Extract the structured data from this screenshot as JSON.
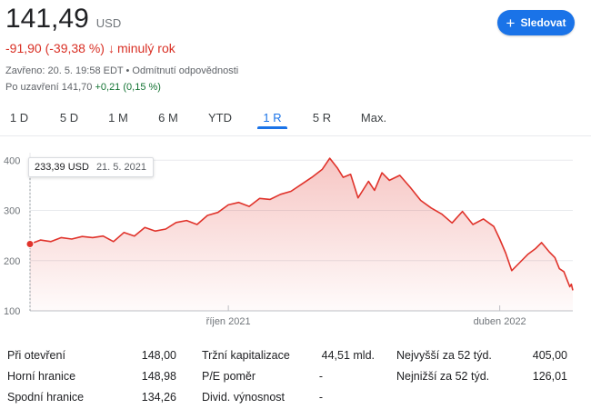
{
  "quote": {
    "price": "141,49",
    "currency": "USD",
    "change": "-91,90 (-39,38 %)",
    "change_arrow": "↓",
    "period": "minulý rok",
    "closed_info": "Zavřeno: 20. 5. 19:58 EDT",
    "disclaimer": "Odmítnutí odpovědnosti",
    "after_label": "Po uzavření 141,70",
    "after_change": "+0,21 (0,15 %)"
  },
  "follow_button": {
    "label": "Sledovat",
    "icon": "plus-icon"
  },
  "tabs": [
    {
      "label": "1 D",
      "active": false
    },
    {
      "label": "5 D",
      "active": false
    },
    {
      "label": "1 M",
      "active": false
    },
    {
      "label": "6 M",
      "active": false
    },
    {
      "label": "YTD",
      "active": false
    },
    {
      "label": "1 R",
      "active": true
    },
    {
      "label": "5 R",
      "active": false
    },
    {
      "label": "Max.",
      "active": false
    }
  ],
  "tooltip": {
    "value": "233,39 USD",
    "date": "21. 5. 2021"
  },
  "colors": {
    "line": "#e0332b",
    "accent": "#1a73e8",
    "negative": "#d93025",
    "positive": "#137333"
  },
  "chart_data": {
    "type": "area",
    "y_ticks": [
      "400",
      "300",
      "200",
      "100"
    ],
    "y_tick_values": [
      400,
      300,
      200,
      100
    ],
    "ylim": [
      100,
      415
    ],
    "x_tick_labels": [
      "říjen 2021",
      "duben 2022"
    ],
    "x_tick_dates": [
      "2021-10-01",
      "2022-04-01"
    ],
    "xlim": [
      "2021-05-21",
      "2022-05-20"
    ],
    "grid": true,
    "series": [
      {
        "points": [
          [
            "2021-05-21",
            233
          ],
          [
            "2021-05-28",
            241
          ],
          [
            "2021-06-04",
            238
          ],
          [
            "2021-06-11",
            246
          ],
          [
            "2021-06-18",
            243
          ],
          [
            "2021-06-25",
            248
          ],
          [
            "2021-07-02",
            246
          ],
          [
            "2021-07-09",
            249
          ],
          [
            "2021-07-16",
            238
          ],
          [
            "2021-07-23",
            256
          ],
          [
            "2021-07-30",
            249
          ],
          [
            "2021-08-06",
            266
          ],
          [
            "2021-08-13",
            259
          ],
          [
            "2021-08-20",
            263
          ],
          [
            "2021-08-27",
            276
          ],
          [
            "2021-09-03",
            280
          ],
          [
            "2021-09-10",
            272
          ],
          [
            "2021-09-17",
            290
          ],
          [
            "2021-09-24",
            296
          ],
          [
            "2021-10-01",
            311
          ],
          [
            "2021-10-08",
            316
          ],
          [
            "2021-10-15",
            308
          ],
          [
            "2021-10-22",
            324
          ],
          [
            "2021-10-29",
            322
          ],
          [
            "2021-11-05",
            332
          ],
          [
            "2021-11-12",
            338
          ],
          [
            "2021-11-19",
            352
          ],
          [
            "2021-11-26",
            366
          ],
          [
            "2021-12-03",
            382
          ],
          [
            "2021-12-08",
            404
          ],
          [
            "2021-12-13",
            385
          ],
          [
            "2021-12-17",
            366
          ],
          [
            "2021-12-22",
            372
          ],
          [
            "2021-12-27",
            325
          ],
          [
            "2022-01-03",
            358
          ],
          [
            "2022-01-07",
            340
          ],
          [
            "2022-01-12",
            375
          ],
          [
            "2022-01-17",
            360
          ],
          [
            "2022-01-24",
            370
          ],
          [
            "2022-01-31",
            346
          ],
          [
            "2022-02-07",
            320
          ],
          [
            "2022-02-14",
            305
          ],
          [
            "2022-02-21",
            293
          ],
          [
            "2022-02-28",
            275
          ],
          [
            "2022-03-07",
            298
          ],
          [
            "2022-03-14",
            272
          ],
          [
            "2022-03-21",
            283
          ],
          [
            "2022-03-28",
            268
          ],
          [
            "2022-04-01",
            243
          ],
          [
            "2022-04-05",
            215
          ],
          [
            "2022-04-09",
            180
          ],
          [
            "2022-04-14",
            195
          ],
          [
            "2022-04-20",
            213
          ],
          [
            "2022-04-25",
            224
          ],
          [
            "2022-04-29",
            236
          ],
          [
            "2022-05-04",
            218
          ],
          [
            "2022-05-08",
            206
          ],
          [
            "2022-05-11",
            184
          ],
          [
            "2022-05-14",
            178
          ],
          [
            "2022-05-16",
            163
          ],
          [
            "2022-05-18",
            148
          ],
          [
            "2022-05-19",
            153
          ],
          [
            "2022-05-20",
            141
          ]
        ]
      }
    ]
  },
  "stats": {
    "rows": [
      [
        {
          "label": "Při otevření",
          "value": "148,00"
        },
        {
          "label": "Tržní kapitalizace",
          "value": "44,51 mld."
        },
        {
          "label": "Nejvyšší za 52 týd.",
          "value": "405,00"
        }
      ],
      [
        {
          "label": "Horní hranice",
          "value": "148,98"
        },
        {
          "label": "P/E poměr",
          "value": "-"
        },
        {
          "label": "Nejnižší za 52 týd.",
          "value": "126,01"
        }
      ],
      [
        {
          "label": "Spodní hranice",
          "value": "134,26"
        },
        {
          "label": "Divid. výnosnost",
          "value": "-"
        },
        {
          "label": "",
          "value": ""
        }
      ]
    ]
  }
}
